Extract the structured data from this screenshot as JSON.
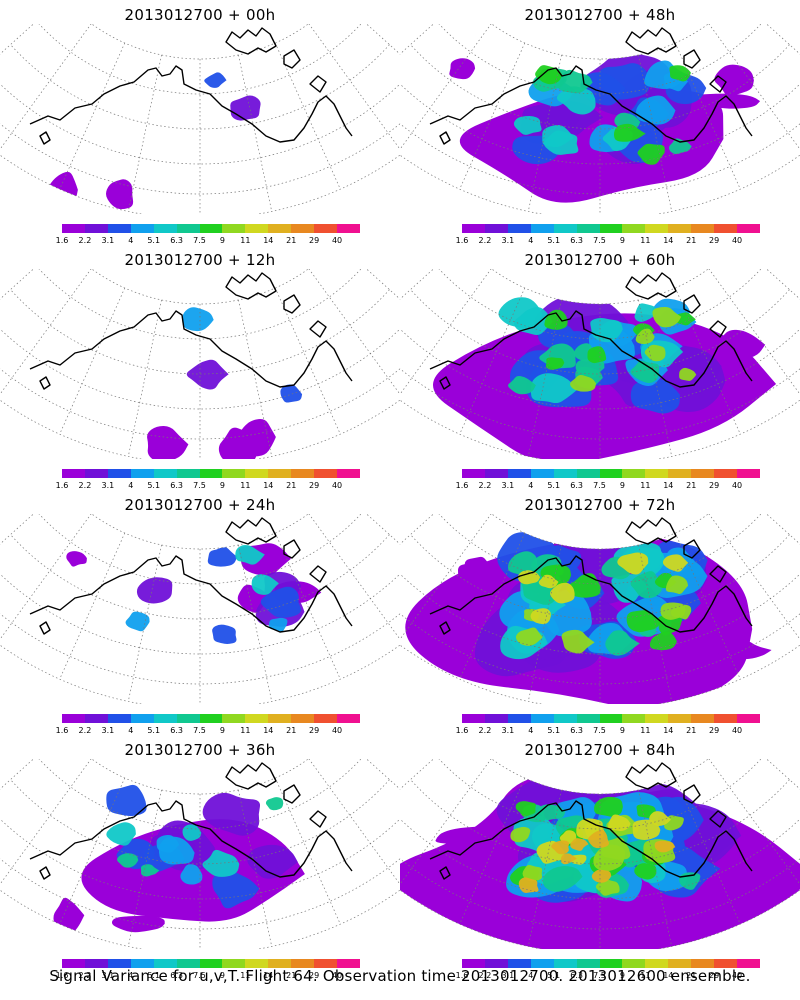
{
  "panels": [
    {
      "title": "2013012700 + 00h",
      "intensity": 0
    },
    {
      "title": "2013012700 + 48h",
      "intensity": 4
    },
    {
      "title": "2013012700 + 12h",
      "intensity": 1
    },
    {
      "title": "2013012700 + 60h",
      "intensity": 5
    },
    {
      "title": "2013012700 + 24h",
      "intensity": 2
    },
    {
      "title": "2013012700 + 72h",
      "intensity": 6
    },
    {
      "title": "2013012700 + 36h",
      "intensity": 3
    },
    {
      "title": "2013012700 + 84h",
      "intensity": 7
    }
  ],
  "colorbar": {
    "labels": [
      "1.6",
      "2.2",
      "3.1",
      "4",
      "5.1",
      "6.3",
      "7.5",
      "9",
      "11",
      "14",
      "21",
      "29",
      "40"
    ],
    "colors": [
      "#9a00d9",
      "#7010d8",
      "#2050e8",
      "#10a0ee",
      "#10c8c8",
      "#10c890",
      "#20d020",
      "#90d820",
      "#d0d820",
      "#e0b020",
      "#e88820",
      "#f05030",
      "#f01090"
    ]
  },
  "caption": "Signal Variance for u,v,T. Flight 64. Observation time 2013012700. 2013012600 ensemble."
}
